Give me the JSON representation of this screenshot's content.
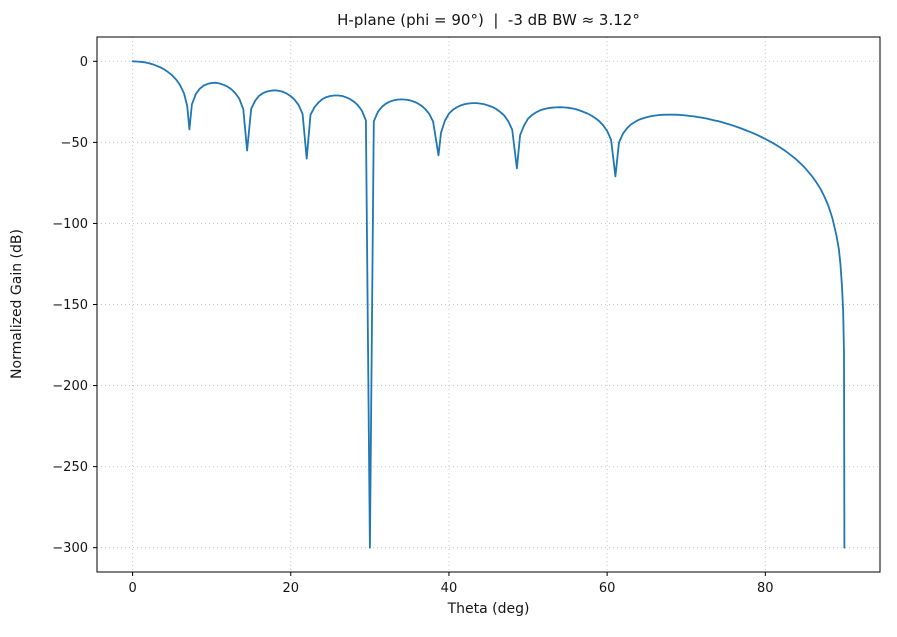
{
  "figure": {
    "title": "H-plane (phi = 90°)  |  -3 dB BW ≈ 3.12°",
    "xlabel": "Theta (deg)",
    "ylabel": "Normalized Gain (dB)"
  },
  "chart_data": {
    "type": "line",
    "title": "H-plane (phi = 90°)  |  -3 dB BW ≈ 3.12°",
    "xlabel": "Theta (deg)",
    "ylabel": "Normalized Gain (dB)",
    "xlim": [
      -4.5,
      94.5
    ],
    "ylim": [
      -315,
      15
    ],
    "x_ticks": [
      0,
      20,
      40,
      60,
      80
    ],
    "y_ticks": [
      0,
      -50,
      -100,
      -150,
      -200,
      -250,
      -300
    ],
    "x_tick_labels": [
      "0",
      "20",
      "40",
      "60",
      "80"
    ],
    "y_tick_labels": [
      "0",
      "−50",
      "−100",
      "−150",
      "−200",
      "−250",
      "−300"
    ],
    "grid": true,
    "legend": false,
    "line_color": "#1f77b4",
    "line_width": 1.8,
    "series": [
      {
        "name": "H-plane normalized gain",
        "points": [
          [
            0,
            0
          ],
          [
            0.5,
            -0.1
          ],
          [
            1,
            -0.3
          ],
          [
            1.5,
            -0.6
          ],
          [
            2,
            -1.1
          ],
          [
            2.5,
            -1.8
          ],
          [
            3,
            -2.7
          ],
          [
            3.5,
            -3.7
          ],
          [
            4,
            -5.0
          ],
          [
            4.5,
            -6.7
          ],
          [
            5,
            -8.6
          ],
          [
            5.5,
            -11.2
          ],
          [
            6,
            -14.6
          ],
          [
            6.5,
            -19.8
          ],
          [
            6.9,
            -27.5
          ],
          [
            7.18,
            -42
          ],
          [
            7.5,
            -26.5
          ],
          [
            8,
            -20.1
          ],
          [
            8.5,
            -16.9
          ],
          [
            9,
            -14.9
          ],
          [
            9.5,
            -13.9
          ],
          [
            10,
            -13.4
          ],
          [
            10.5,
            -13.2
          ],
          [
            11,
            -13.7
          ],
          [
            11.5,
            -14.5
          ],
          [
            12,
            -15.6
          ],
          [
            12.5,
            -17.3
          ],
          [
            13,
            -19.7
          ],
          [
            13.5,
            -23.2
          ],
          [
            14,
            -29.6
          ],
          [
            14.48,
            -55
          ],
          [
            15,
            -29.2
          ],
          [
            15.5,
            -24.3
          ],
          [
            16,
            -21.3
          ],
          [
            16.5,
            -19.6
          ],
          [
            17,
            -18.6
          ],
          [
            17.5,
            -18.1
          ],
          [
            18,
            -17.9
          ],
          [
            18.5,
            -18.2
          ],
          [
            19,
            -18.8
          ],
          [
            19.5,
            -19.9
          ],
          [
            20,
            -21.5
          ],
          [
            20.5,
            -23.8
          ],
          [
            21,
            -27.0
          ],
          [
            21.5,
            -32.5
          ],
          [
            22.02,
            -60
          ],
          [
            22.5,
            -33.0
          ],
          [
            23,
            -28.3
          ],
          [
            23.5,
            -25.4
          ],
          [
            24,
            -23.3
          ],
          [
            24.5,
            -22.1
          ],
          [
            25,
            -21.4
          ],
          [
            25.5,
            -21.1
          ],
          [
            26,
            -21.1
          ],
          [
            26.5,
            -21.4
          ],
          [
            27,
            -22.2
          ],
          [
            27.5,
            -23.3
          ],
          [
            28,
            -24.9
          ],
          [
            28.5,
            -27.2
          ],
          [
            29,
            -30.6
          ],
          [
            29.5,
            -36.5
          ],
          [
            30,
            -300
          ],
          [
            30.5,
            -37.0
          ],
          [
            31,
            -31.3
          ],
          [
            31.5,
            -28.2
          ],
          [
            32,
            -26.2
          ],
          [
            32.5,
            -24.9
          ],
          [
            33,
            -24.1
          ],
          [
            33.5,
            -23.6
          ],
          [
            34,
            -23.5
          ],
          [
            34.5,
            -23.6
          ],
          [
            35,
            -24.0
          ],
          [
            35.5,
            -24.8
          ],
          [
            36,
            -25.8
          ],
          [
            36.5,
            -27.3
          ],
          [
            37,
            -29.4
          ],
          [
            37.5,
            -32.4
          ],
          [
            38,
            -37.1
          ],
          [
            38.68,
            -58
          ],
          [
            39,
            -44.0
          ],
          [
            39.5,
            -36.5
          ],
          [
            40,
            -32.2
          ],
          [
            40.5,
            -29.9
          ],
          [
            41,
            -28.3
          ],
          [
            41.5,
            -27.2
          ],
          [
            42,
            -26.4
          ],
          [
            42.5,
            -26.0
          ],
          [
            43,
            -25.8
          ],
          [
            43.5,
            -25.8
          ],
          [
            44,
            -26.1
          ],
          [
            44.5,
            -26.5
          ],
          [
            45,
            -27.3
          ],
          [
            45.5,
            -28.2
          ],
          [
            46,
            -29.5
          ],
          [
            46.5,
            -31.3
          ],
          [
            47,
            -33.5
          ],
          [
            47.5,
            -37.0
          ],
          [
            48,
            -42.2
          ],
          [
            48.59,
            -66
          ],
          [
            49,
            -45.6
          ],
          [
            49.5,
            -39.5
          ],
          [
            50,
            -35.4
          ],
          [
            50.5,
            -33.2
          ],
          [
            51,
            -31.5
          ],
          [
            51.5,
            -30.3
          ],
          [
            52,
            -29.5
          ],
          [
            52.5,
            -28.9
          ],
          [
            53,
            -28.6
          ],
          [
            53.5,
            -28.4
          ],
          [
            54,
            -28.3
          ],
          [
            54.5,
            -28.4
          ],
          [
            55,
            -28.6
          ],
          [
            55.5,
            -29.0
          ],
          [
            56,
            -29.5
          ],
          [
            56.5,
            -30.3
          ],
          [
            57,
            -31.2
          ],
          [
            57.5,
            -32.2
          ],
          [
            58,
            -33.4
          ],
          [
            58.5,
            -35.0
          ],
          [
            59,
            -36.9
          ],
          [
            59.5,
            -39.5
          ],
          [
            60,
            -42.9
          ],
          [
            60.5,
            -48.5
          ],
          [
            61.04,
            -71
          ],
          [
            61.5,
            -50.0
          ],
          [
            62,
            -44.6
          ],
          [
            62.5,
            -41.4
          ],
          [
            63,
            -39.0
          ],
          [
            63.5,
            -37.4
          ],
          [
            64,
            -36.1
          ],
          [
            64.5,
            -35.2
          ],
          [
            65,
            -34.5
          ],
          [
            65.5,
            -33.9
          ],
          [
            66,
            -33.5
          ],
          [
            66.5,
            -33.2
          ],
          [
            67,
            -33.0
          ],
          [
            67.5,
            -32.9
          ],
          [
            68,
            -32.9
          ],
          [
            68.5,
            -32.9
          ],
          [
            69,
            -33.0
          ],
          [
            69.5,
            -33.2
          ],
          [
            70,
            -33.4
          ],
          [
            70.5,
            -33.7
          ],
          [
            71,
            -34.0
          ],
          [
            71.5,
            -34.4
          ],
          [
            72,
            -34.8
          ],
          [
            72.5,
            -35.2
          ],
          [
            73,
            -35.8
          ],
          [
            73.5,
            -36.3
          ],
          [
            74,
            -36.9
          ],
          [
            74.5,
            -37.5
          ],
          [
            75,
            -38.3
          ],
          [
            75.5,
            -39.0
          ],
          [
            76,
            -39.8
          ],
          [
            76.5,
            -40.6
          ],
          [
            77,
            -41.5
          ],
          [
            77.5,
            -42.4
          ],
          [
            78,
            -43.4
          ],
          [
            78.5,
            -44.4
          ],
          [
            79,
            -45.5
          ],
          [
            79.5,
            -46.7
          ],
          [
            80,
            -47.9
          ],
          [
            80.5,
            -49.2
          ],
          [
            81,
            -50.5
          ],
          [
            81.5,
            -52.0
          ],
          [
            82,
            -53.5
          ],
          [
            82.5,
            -55.2
          ],
          [
            83,
            -57.0
          ],
          [
            83.5,
            -58.9
          ],
          [
            84,
            -60.9
          ],
          [
            84.5,
            -63.2
          ],
          [
            85,
            -65.7
          ],
          [
            85.5,
            -68.5
          ],
          [
            86,
            -71.5
          ],
          [
            86.5,
            -75.0
          ],
          [
            87,
            -78.9
          ],
          [
            87.5,
            -83.7
          ],
          [
            88,
            -89.5
          ],
          [
            88.5,
            -97.0
          ],
          [
            89,
            -107.6
          ],
          [
            89.3,
            -116
          ],
          [
            89.5,
            -125.6
          ],
          [
            89.7,
            -139
          ],
          [
            89.85,
            -155
          ],
          [
            89.95,
            -180
          ],
          [
            90,
            -300
          ]
        ]
      }
    ]
  }
}
